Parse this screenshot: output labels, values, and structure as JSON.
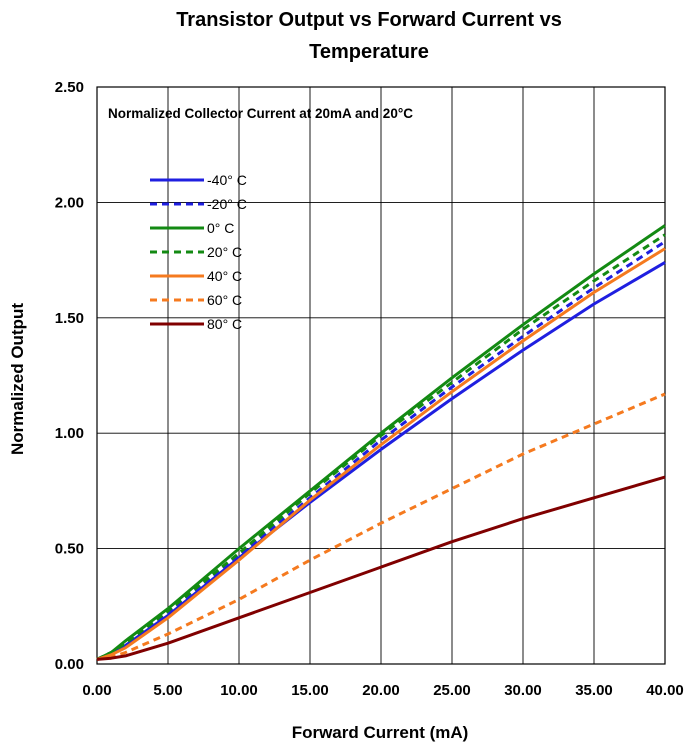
{
  "chart_data": {
    "type": "line",
    "title_line1": "Transistor Output vs Forward Current vs",
    "title_line2": "Temperature",
    "xlabel": "Forward Current (mA)",
    "ylabel": "Normalized Output",
    "annotation": "Normalized Collector Current at 20mA and 20°C",
    "xlim": [
      0,
      40
    ],
    "ylim": [
      0,
      2.5
    ],
    "x_ticks": [
      "0.00",
      "5.00",
      "10.00",
      "15.00",
      "20.00",
      "25.00",
      "30.00",
      "35.00",
      "40.00"
    ],
    "y_ticks": [
      "0.00",
      "0.50",
      "1.00",
      "1.50",
      "2.00",
      "2.50"
    ],
    "grid": true,
    "legend_position": "upper-left",
    "series": [
      {
        "name": "-40° C",
        "color": "#1f1fe0",
        "dash": "solid",
        "x": [
          0,
          1,
          2,
          5,
          10,
          15,
          20,
          25,
          30,
          35,
          40
        ],
        "y": [
          0.02,
          0.04,
          0.08,
          0.21,
          0.46,
          0.7,
          0.93,
          1.15,
          1.36,
          1.56,
          1.74
        ]
      },
      {
        "name": "-20° C",
        "color": "#1f1fe0",
        "dash": "dashed",
        "x": [
          0,
          1,
          2,
          5,
          10,
          15,
          20,
          25,
          30,
          35,
          40
        ],
        "y": [
          0.02,
          0.05,
          0.09,
          0.22,
          0.47,
          0.72,
          0.97,
          1.2,
          1.42,
          1.63,
          1.83
        ]
      },
      {
        "name": "0° C",
        "color": "#138a13",
        "dash": "solid",
        "x": [
          0,
          1,
          2,
          5,
          10,
          15,
          20,
          25,
          30,
          35,
          40
        ],
        "y": [
          0.02,
          0.05,
          0.1,
          0.24,
          0.5,
          0.75,
          1.0,
          1.24,
          1.47,
          1.69,
          1.9
        ]
      },
      {
        "name": "20° C",
        "color": "#138a13",
        "dash": "dashed",
        "x": [
          0,
          1,
          2,
          5,
          10,
          15,
          20,
          25,
          30,
          35,
          40
        ],
        "y": [
          0.02,
          0.05,
          0.09,
          0.23,
          0.48,
          0.74,
          0.99,
          1.22,
          1.45,
          1.66,
          1.86
        ]
      },
      {
        "name": "40° C",
        "color": "#f57a1f",
        "dash": "solid",
        "x": [
          0,
          1,
          2,
          5,
          10,
          15,
          20,
          25,
          30,
          35,
          40
        ],
        "y": [
          0.02,
          0.04,
          0.07,
          0.2,
          0.45,
          0.71,
          0.95,
          1.18,
          1.4,
          1.61,
          1.8
        ]
      },
      {
        "name": "60° C",
        "color": "#f57a1f",
        "dash": "dashed",
        "x": [
          0,
          1,
          2,
          5,
          10,
          15,
          20,
          25,
          30,
          35,
          40
        ],
        "y": [
          0.02,
          0.03,
          0.05,
          0.13,
          0.28,
          0.45,
          0.61,
          0.76,
          0.91,
          1.04,
          1.17
        ]
      },
      {
        "name": "80° C",
        "color": "#800000",
        "dash": "solid",
        "x": [
          0,
          1,
          2,
          5,
          10,
          15,
          20,
          25,
          30,
          35,
          40
        ],
        "y": [
          0.02,
          0.025,
          0.035,
          0.09,
          0.2,
          0.31,
          0.42,
          0.53,
          0.63,
          0.72,
          0.81
        ]
      }
    ]
  }
}
